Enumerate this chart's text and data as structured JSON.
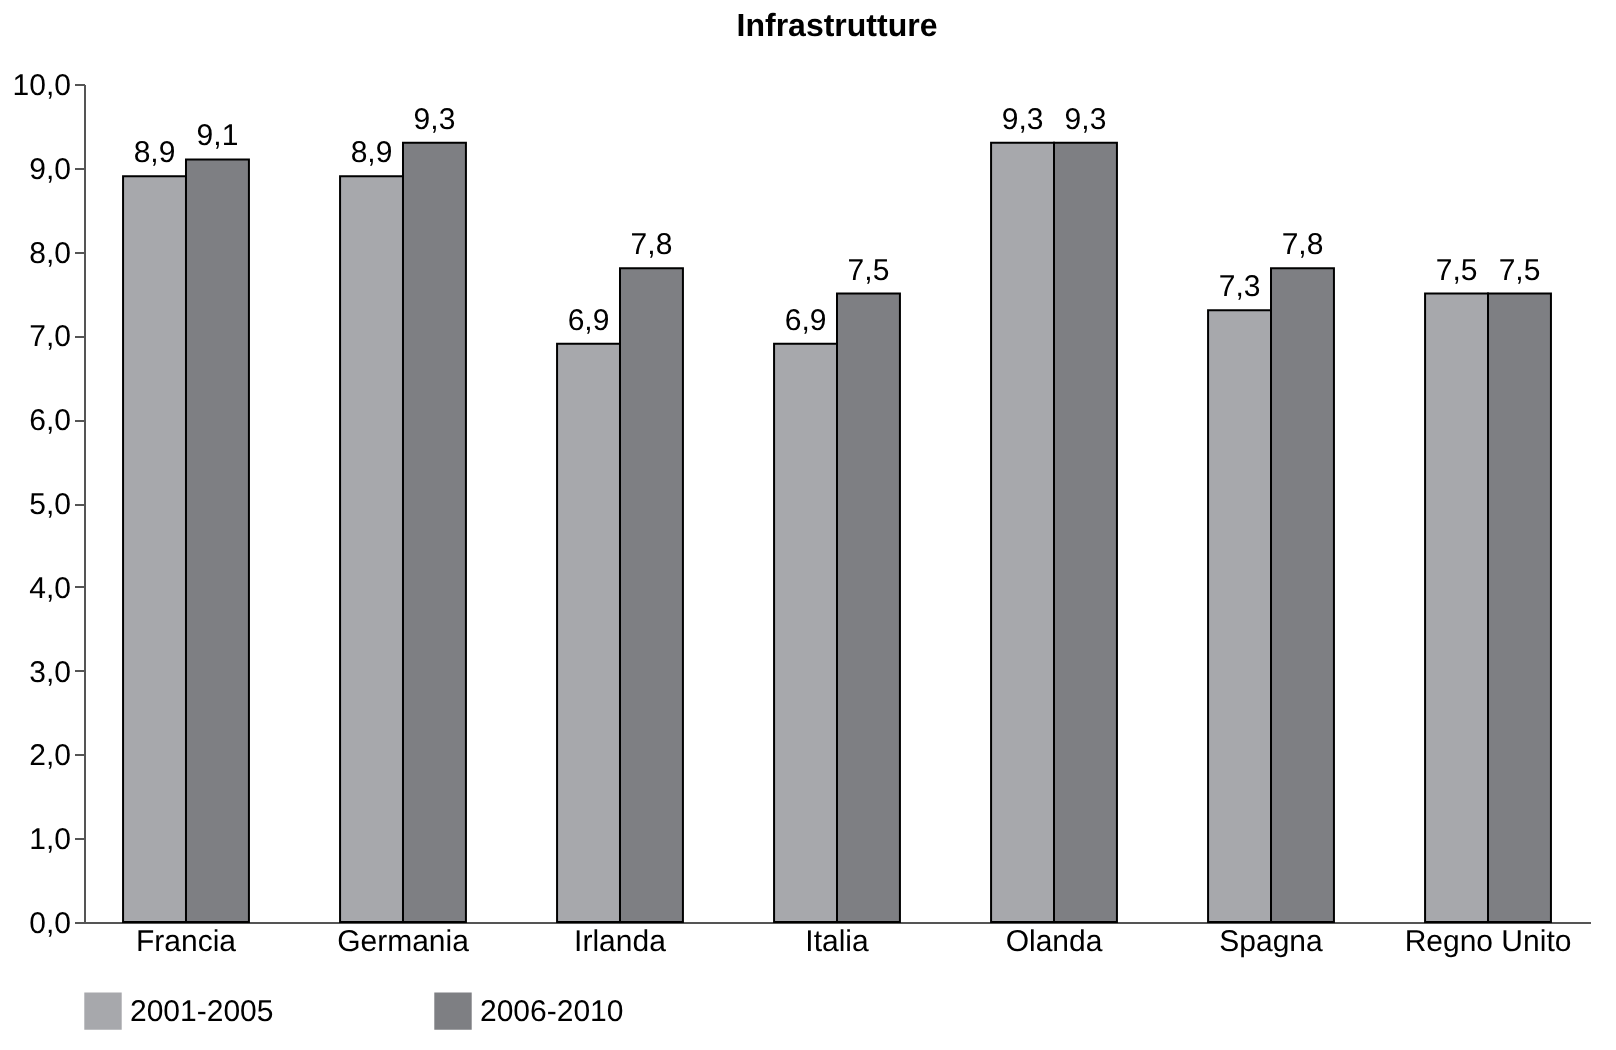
{
  "chart_data": {
    "type": "bar",
    "title": "Infrastrutture",
    "categories": [
      "Francia",
      "Germania",
      "Irlanda",
      "Italia",
      "Olanda",
      "Spagna",
      "Regno Unito"
    ],
    "series": [
      {
        "name": "2001-2005",
        "color": "#a7a8ac",
        "values": [
          8.9,
          8.9,
          6.9,
          6.9,
          9.3,
          7.3,
          7.5
        ],
        "value_labels": [
          "8,9",
          "8,9",
          "6,9",
          "6,9",
          "9,3",
          "7,3",
          "7,5"
        ]
      },
      {
        "name": "2006-2010",
        "color": "#7e7f83",
        "values": [
          9.1,
          9.3,
          7.8,
          7.5,
          9.3,
          7.8,
          7.5
        ],
        "value_labels": [
          "9,1",
          "9,3",
          "7,8",
          "7,5",
          "9,3",
          "7,8",
          "7,5"
        ]
      }
    ],
    "ylim": [
      0,
      10
    ],
    "yticks": [
      {
        "value": 0,
        "label": "0,0"
      },
      {
        "value": 1,
        "label": "1,0"
      },
      {
        "value": 2,
        "label": "2,0"
      },
      {
        "value": 3,
        "label": "3,0"
      },
      {
        "value": 4,
        "label": "4,0"
      },
      {
        "value": 5,
        "label": "5,0"
      },
      {
        "value": 6,
        "label": "6,0"
      },
      {
        "value": 7,
        "label": "7,0"
      },
      {
        "value": 8,
        "label": "8,0"
      },
      {
        "value": 9,
        "label": "9,0"
      },
      {
        "value": 10,
        "label": "10,0"
      }
    ],
    "grid": false,
    "legend": "bottom"
  }
}
